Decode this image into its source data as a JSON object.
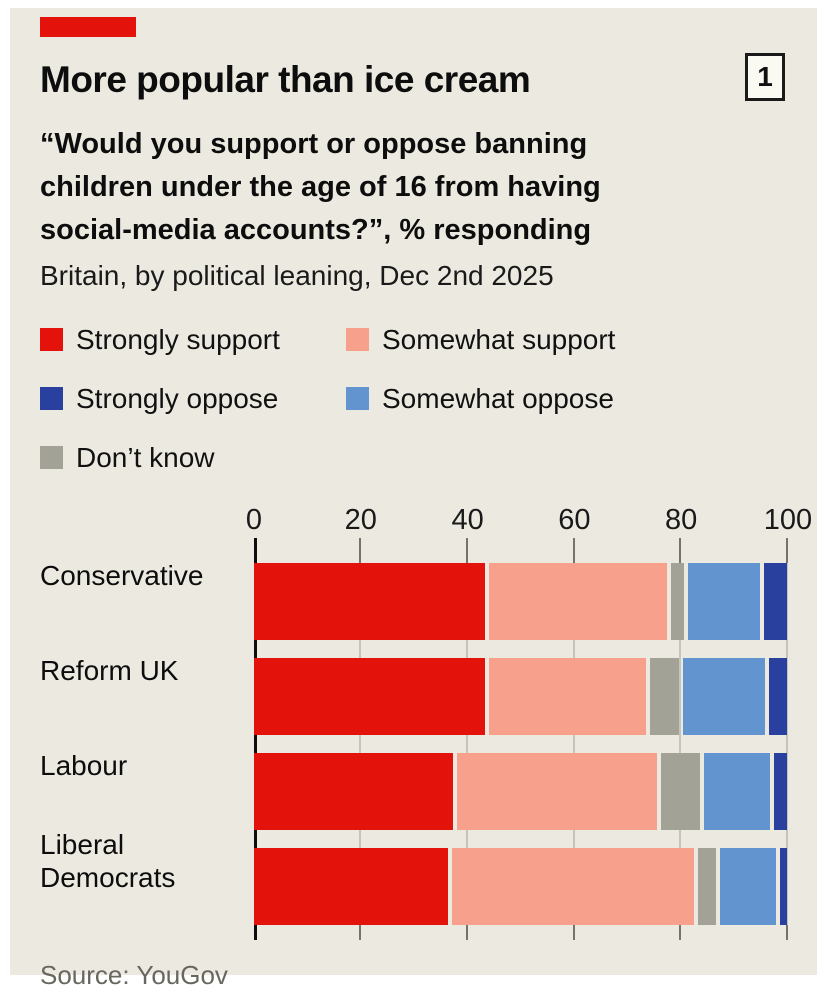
{
  "header": {
    "title": "More popular than ice cream",
    "index_badge": "1"
  },
  "subtitle": {
    "question": "“Would you support or oppose banning children under the age of 16 from having social-media accounts?”, % responding",
    "context": "Britain, by political leaning, Dec 2nd 2025"
  },
  "colors": {
    "brand_red": "#E3120B",
    "background": "#ECEAE0",
    "strongly_support": "#E3120B",
    "somewhat_support": "#F7A08C",
    "strongly_oppose": "#2A409E",
    "somewhat_oppose": "#6294D0",
    "dont_know": "#A3A296"
  },
  "legend": [
    {
      "label": "Strongly support",
      "color": "#E3120B"
    },
    {
      "label": "Somewhat support",
      "color": "#F7A08C"
    },
    {
      "label": "Strongly oppose",
      "color": "#2A409E"
    },
    {
      "label": "Somewhat oppose",
      "color": "#6294D0"
    },
    {
      "label": "Don’t know",
      "color": "#A3A296"
    }
  ],
  "chart_data": {
    "type": "bar",
    "orientation": "horizontal",
    "stacked": true,
    "unit": "%",
    "xlim": [
      0,
      100
    ],
    "x_ticks": [
      0,
      20,
      40,
      60,
      80,
      100
    ],
    "grid": true,
    "categories": [
      "Conservative",
      "Reform UK",
      "Labour",
      "Liberal Democrats"
    ],
    "series": [
      {
        "name": "Strongly support",
        "color": "#E3120B",
        "values": [
          44,
          44,
          38,
          37
        ]
      },
      {
        "name": "Somewhat support",
        "color": "#F7A08C",
        "values": [
          34,
          30,
          38,
          46
        ]
      },
      {
        "name": "Don’t know",
        "color": "#A3A296",
        "values": [
          3,
          6,
          8,
          4
        ]
      },
      {
        "name": "Somewhat oppose",
        "color": "#6294D0",
        "values": [
          14,
          16,
          13,
          11
        ]
      },
      {
        "name": "Strongly oppose",
        "color": "#2A409E",
        "values": [
          5,
          4,
          3,
          2
        ]
      }
    ]
  },
  "source": "Source: YouGov"
}
